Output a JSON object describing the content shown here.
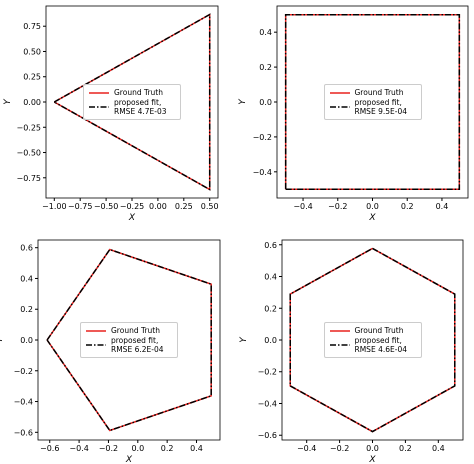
{
  "chart_data": [
    {
      "type": "line",
      "xlabel": "X",
      "ylabel": "Y",
      "legend": "center",
      "x": [
        -1,
        0.5,
        0.5,
        -1
      ],
      "series": [
        {
          "name": "Ground Truth",
          "color": "#e8221f",
          "style": "solid",
          "values": [
            0,
            0.866,
            -0.866,
            0
          ]
        },
        {
          "name": "proposed fit, RMSE 4.7E-03",
          "color": "#000000",
          "style": "dashdot",
          "values": [
            0,
            0.866,
            -0.866,
            0
          ]
        }
      ],
      "xlim": [
        -1.08,
        0.58
      ],
      "xticks": [
        {
          "value": -1,
          "label": "−1.00"
        },
        {
          "value": -0.75,
          "label": "−0.75"
        },
        {
          "value": -0.5,
          "label": "−0.50"
        },
        {
          "value": -0.25,
          "label": "−0.25"
        },
        {
          "value": 0,
          "label": "0.00"
        },
        0.25,
        {
          "value": 0.5,
          "label": "0.50"
        }
      ],
      "ylim": [
        -0.95,
        0.95
      ],
      "yticks": [
        {
          "value": -0.75,
          "label": "−0.75"
        },
        {
          "value": -0.5,
          "label": "−0.50"
        },
        {
          "value": -0.25,
          "label": "−0.25"
        },
        {
          "value": 0,
          "label": "0.00"
        },
        0.25,
        {
          "value": 0.5,
          "label": "0.50"
        },
        0.75
      ]
    },
    {
      "type": "line",
      "xlabel": "X",
      "ylabel": "Y",
      "legend": "center",
      "x": [
        -0.5,
        0.5,
        0.5,
        -0.5,
        -0.5
      ],
      "series": [
        {
          "name": "Ground Truth",
          "color": "#e8221f",
          "style": "solid",
          "values": [
            -0.5,
            -0.5,
            0.5,
            0.5,
            -0.5
          ]
        },
        {
          "name": "proposed fit, RMSE 9.5E-04",
          "color": "#000000",
          "style": "dashdot",
          "values": [
            -0.5,
            -0.5,
            0.5,
            0.5,
            -0.5
          ]
        }
      ],
      "xlim": [
        -0.55,
        0.55
      ],
      "xticks": [
        {
          "value": -0.4,
          "label": "−0.4"
        },
        {
          "value": -0.2,
          "label": "−0.2"
        },
        {
          "value": 0,
          "label": "0.0"
        },
        0.2,
        0.4
      ],
      "ylim": [
        -0.55,
        0.55
      ],
      "yticks": [
        {
          "value": -0.4,
          "label": "−0.4"
        },
        {
          "value": -0.2,
          "label": "−0.2"
        },
        {
          "value": 0,
          "label": "0.0"
        },
        0.2,
        0.4
      ]
    },
    {
      "type": "line",
      "xlabel": "X",
      "ylabel": "Y",
      "legend": "center",
      "x": [
        -0.618,
        -0.191,
        0.5,
        0.5,
        -0.191,
        -0.618
      ],
      "series": [
        {
          "name": "Ground Truth",
          "color": "#e8221f",
          "style": "solid",
          "values": [
            0,
            0.588,
            0.363,
            -0.363,
            -0.588,
            0
          ]
        },
        {
          "name": "proposed fit, RMSE 6.2E-04",
          "color": "#000000",
          "style": "dashdot",
          "values": [
            0,
            0.588,
            0.363,
            -0.363,
            -0.588,
            0
          ]
        }
      ],
      "xlim": [
        -0.68,
        0.56
      ],
      "xticks": [
        {
          "value": -0.6,
          "label": "−0.6"
        },
        {
          "value": -0.4,
          "label": "−0.4"
        },
        {
          "value": -0.2,
          "label": "−0.2"
        },
        {
          "value": 0,
          "label": "0.0"
        },
        0.2,
        0.4
      ],
      "ylim": [
        -0.65,
        0.65
      ],
      "yticks": [
        {
          "value": -0.6,
          "label": "−0.6"
        },
        {
          "value": -0.4,
          "label": "−0.4"
        },
        {
          "value": -0.2,
          "label": "−0.2"
        },
        {
          "value": 0,
          "label": "0.0"
        },
        0.2,
        0.4,
        0.6
      ]
    },
    {
      "type": "line",
      "xlabel": "X",
      "ylabel": "Y",
      "legend": "center",
      "x": [
        0,
        0.5,
        0.5,
        0,
        -0.5,
        -0.5,
        0
      ],
      "series": [
        {
          "name": "Ground Truth",
          "color": "#e8221f",
          "style": "solid",
          "values": [
            0.577,
            0.289,
            -0.289,
            -0.577,
            -0.289,
            0.289,
            0.577
          ]
        },
        {
          "name": "proposed fit, RMSE 4.6E-04",
          "color": "#000000",
          "style": "dashdot",
          "values": [
            0.577,
            0.289,
            -0.289,
            -0.577,
            -0.289,
            0.289,
            0.577
          ]
        }
      ],
      "xlim": [
        -0.55,
        0.55
      ],
      "xticks": [
        {
          "value": -0.4,
          "label": "−0.4"
        },
        {
          "value": -0.2,
          "label": "−0.2"
        },
        {
          "value": 0,
          "label": "0.0"
        },
        0.2,
        0.4
      ],
      "ylim": [
        -0.63,
        0.63
      ],
      "yticks": [
        {
          "value": -0.6,
          "label": "−0.6"
        },
        {
          "value": -0.4,
          "label": "−0.4"
        },
        {
          "value": -0.2,
          "label": "−0.2"
        },
        {
          "value": 0,
          "label": "0.0"
        },
        0.2,
        0.4,
        0.6
      ]
    }
  ]
}
